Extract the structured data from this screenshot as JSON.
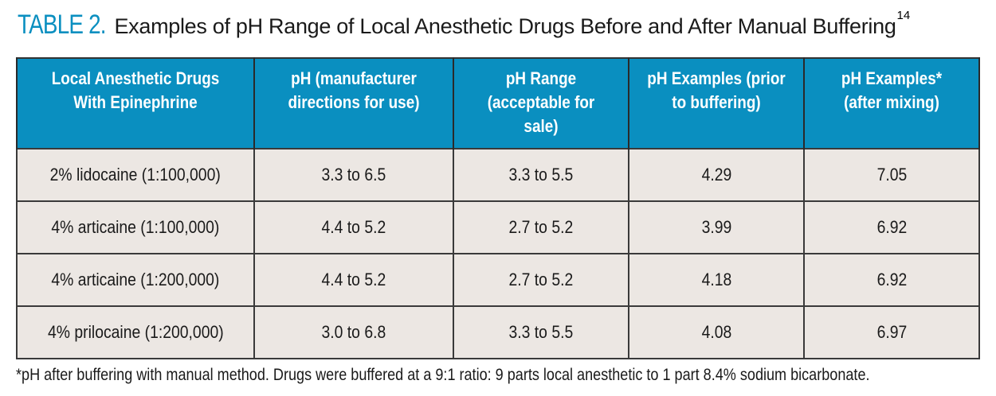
{
  "title": {
    "label": "TABLE 2.",
    "text": "Examples of pH Range of Local Anesthetic Drugs Before and After Manual Buffering",
    "superscript": "14"
  },
  "table": {
    "headers": [
      "Local Anesthetic Drugs With Epinephrine",
      "pH (manufacturer directions for use)",
      "pH Range (acceptable for sale)",
      "pH Examples (prior to buffering)",
      "pH Examples* (after mixing)"
    ],
    "rows": [
      [
        "2% lidocaine (1:100,000)",
        "3.3 to 6.5",
        "3.3 to 5.5",
        "4.29",
        "7.05"
      ],
      [
        "4% articaine (1:100,000)",
        "4.4 to 5.2",
        "2.7 to 5.2",
        "3.99",
        "6.92"
      ],
      [
        "4% articaine (1:200,000)",
        "4.4 to 5.2",
        "2.7 to 5.2",
        "4.18",
        "6.92"
      ],
      [
        "4% prilocaine (1:200,000)",
        "3.0 to 6.8",
        "3.3 to 5.5",
        "4.08",
        "6.97"
      ]
    ]
  },
  "footnote": "*pH after buffering with manual method. Drugs were buffered at a 9:1 ratio: 9 parts local anesthetic to 1 part 8.4% sodium bicarbonate.",
  "colors": {
    "accent": "#0a8fc0",
    "cell_background": "#ece7e3",
    "text": "#1a1a1a"
  }
}
